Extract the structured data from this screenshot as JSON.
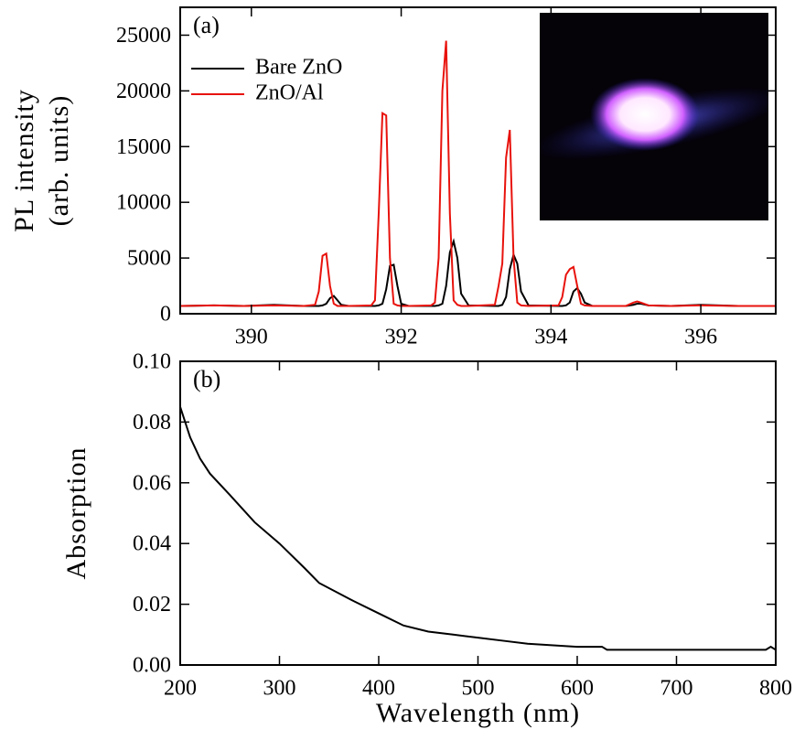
{
  "chart_data": [
    {
      "type": "line",
      "panel_label": "(a)",
      "ylabel": [
        "PL intensity",
        "(arb. units)"
      ],
      "x": [
        389.05,
        389.5,
        389.9,
        390.3,
        390.7,
        390.85,
        390.9,
        390.95,
        391.0,
        391.05,
        391.1,
        391.15,
        391.2,
        391.3,
        391.6,
        391.65,
        391.7,
        391.75,
        391.8,
        391.85,
        391.9,
        391.95,
        392.0,
        392.1,
        392.4,
        392.45,
        392.5,
        392.55,
        392.6,
        392.65,
        392.7,
        392.75,
        392.8,
        392.9,
        393.25,
        393.3,
        393.35,
        393.4,
        393.45,
        393.5,
        393.55,
        393.6,
        393.7,
        394.1,
        394.15,
        394.2,
        394.25,
        394.3,
        394.35,
        394.4,
        394.45,
        394.55,
        395.0,
        395.1,
        395.15,
        395.2,
        395.3,
        395.6,
        396.0,
        396.5,
        397.0
      ],
      "series": [
        {
          "name": "Bare ZnO",
          "color": "#000000",
          "values": [
            700,
            750,
            700,
            800,
            700,
            700,
            700,
            750,
            900,
            1400,
            1600,
            1200,
            800,
            700,
            700,
            700,
            750,
            900,
            2200,
            4300,
            4400,
            2500,
            900,
            700,
            700,
            700,
            750,
            900,
            2500,
            5500,
            6500,
            5000,
            1800,
            750,
            700,
            700,
            800,
            1500,
            4000,
            5300,
            4500,
            2000,
            750,
            700,
            700,
            750,
            1000,
            2000,
            2300,
            1800,
            1000,
            700,
            700,
            800,
            900,
            900,
            750,
            700,
            800,
            700,
            700
          ]
        },
        {
          "name": "ZnO/Al",
          "color": "#e8120c",
          "values": [
            700,
            750,
            700,
            750,
            700,
            800,
            2000,
            5200,
            5400,
            2500,
            900,
            700,
            700,
            700,
            750,
            1200,
            9000,
            18000,
            17800,
            5000,
            900,
            750,
            700,
            700,
            750,
            1000,
            5000,
            20000,
            24500,
            9000,
            1200,
            800,
            700,
            700,
            800,
            2500,
            4500,
            14000,
            16500,
            5000,
            1000,
            750,
            700,
            750,
            1500,
            3500,
            4000,
            4200,
            2500,
            900,
            750,
            700,
            700,
            1000,
            1100,
            1000,
            750,
            700,
            750,
            700,
            700
          ]
        }
      ],
      "xlim": [
        389.05,
        397.0
      ],
      "xticks": [
        390,
        392,
        394,
        396
      ],
      "ylim": [
        0,
        27500
      ],
      "yticks": [
        0,
        5000,
        10000,
        15000,
        20000,
        25000
      ],
      "legend": "upper-left"
    },
    {
      "type": "line",
      "panel_label": "(b)",
      "xlabel": "Wavelength (nm)",
      "ylabel": [
        "Absorption"
      ],
      "x": [
        200,
        210,
        220,
        230,
        250,
        275,
        300,
        325,
        340,
        375,
        400,
        425,
        450,
        475,
        500,
        525,
        550,
        600,
        625,
        630,
        700,
        790,
        795,
        800
      ],
      "series": [
        {
          "color": "#000000",
          "values": [
            0.085,
            0.075,
            0.068,
            0.063,
            0.056,
            0.047,
            0.04,
            0.032,
            0.027,
            0.021,
            0.017,
            0.013,
            0.011,
            0.01,
            0.009,
            0.008,
            0.007,
            0.006,
            0.006,
            0.005,
            0.005,
            0.005,
            0.006,
            0.005
          ]
        }
      ],
      "xlim": [
        200,
        800
      ],
      "xticks": [
        200,
        300,
        400,
        500,
        600,
        700,
        800
      ],
      "ylim": [
        0,
        0.1
      ],
      "yticks": [
        {
          "value": 0,
          "label": "0.00"
        },
        {
          "value": 0.02,
          "label": "0.02"
        },
        {
          "value": 0.04,
          "label": "0.04"
        },
        {
          "value": 0.06,
          "label": "0.06"
        },
        {
          "value": 0.08,
          "label": "0.08"
        },
        {
          "value": 0.1,
          "label": "0.10"
        }
      ]
    }
  ]
}
